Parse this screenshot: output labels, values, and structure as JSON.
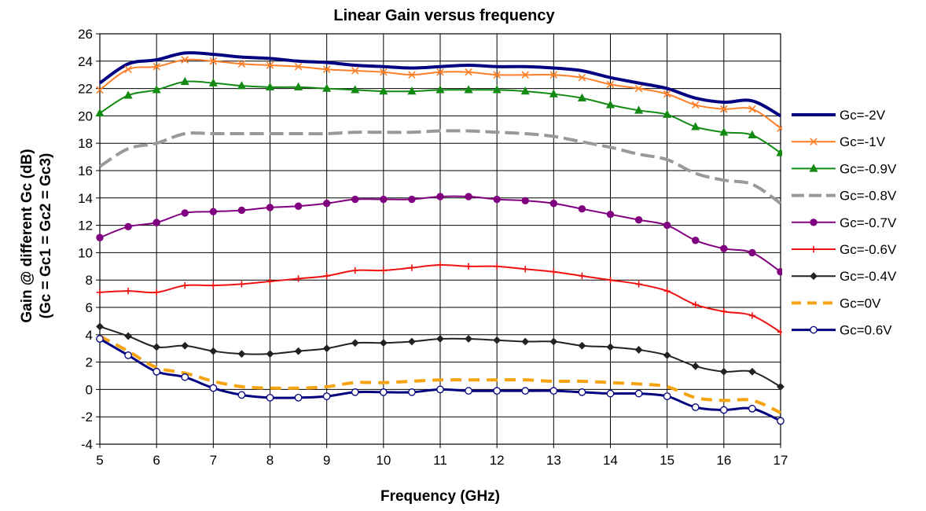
{
  "chart_data": {
    "type": "line",
    "title": "Linear Gain versus frequency",
    "xlabel": "Frequency (GHz)",
    "ylabel_line1": "Gain @ different Gc (dB)",
    "ylabel_line2": "(Gc = Gc1 = Gc2 = Gc3)",
    "xlim": [
      5,
      17
    ],
    "ylim": [
      -4,
      26
    ],
    "x_ticks": [
      5,
      6,
      7,
      8,
      9,
      10,
      11,
      12,
      13,
      14,
      15,
      16,
      17
    ],
    "y_ticks": [
      -4,
      -2,
      0,
      2,
      4,
      6,
      8,
      10,
      12,
      14,
      16,
      18,
      20,
      22,
      24,
      26
    ],
    "grid": true,
    "legend_position": "right",
    "x": [
      5,
      5.5,
      6,
      6.5,
      7,
      7.5,
      8,
      8.5,
      9,
      9.5,
      10,
      10.5,
      11,
      11.5,
      12,
      12.5,
      13,
      13.5,
      14,
      14.5,
      15,
      15.5,
      16,
      16.5,
      17
    ],
    "series": [
      {
        "name": "Gc=-2V",
        "color": "#000080",
        "marker": "none",
        "dash": "solid",
        "width": 4,
        "values": [
          22.4,
          23.8,
          24.1,
          24.6,
          24.5,
          24.3,
          24.2,
          24.0,
          23.9,
          23.7,
          23.6,
          23.5,
          23.6,
          23.7,
          23.6,
          23.6,
          23.5,
          23.3,
          22.8,
          22.4,
          22.0,
          21.3,
          21.0,
          21.1,
          20.0
        ]
      },
      {
        "name": "Gc=-1V",
        "color": "#ff7f27",
        "marker": "x",
        "dash": "solid",
        "width": 2,
        "values": [
          21.9,
          23.4,
          23.6,
          24.1,
          24.0,
          23.8,
          23.7,
          23.6,
          23.4,
          23.3,
          23.2,
          23.0,
          23.2,
          23.2,
          23.0,
          23.0,
          23.0,
          22.8,
          22.3,
          22.0,
          21.6,
          20.8,
          20.5,
          20.5,
          19.1
        ]
      },
      {
        "name": "Gc=-0.9V",
        "color": "#138a13",
        "marker": "triangle",
        "dash": "solid",
        "width": 2,
        "values": [
          20.2,
          21.5,
          21.9,
          22.5,
          22.4,
          22.2,
          22.1,
          22.1,
          22.0,
          21.9,
          21.8,
          21.8,
          21.9,
          21.9,
          21.9,
          21.8,
          21.6,
          21.3,
          20.8,
          20.4,
          20.1,
          19.2,
          18.8,
          18.6,
          17.3
        ]
      },
      {
        "name": "Gc=-0.8V",
        "color": "#999999",
        "marker": "none",
        "dash": "long",
        "width": 4,
        "values": [
          16.3,
          17.6,
          18.0,
          18.7,
          18.7,
          18.7,
          18.7,
          18.7,
          18.7,
          18.8,
          18.8,
          18.8,
          18.9,
          18.9,
          18.8,
          18.7,
          18.5,
          18.1,
          17.7,
          17.2,
          16.8,
          15.8,
          15.3,
          15.0,
          13.6
        ]
      },
      {
        "name": "Gc=-0.7V",
        "color": "#800080",
        "marker": "circle",
        "dash": "solid",
        "width": 2,
        "values": [
          11.1,
          11.9,
          12.2,
          12.9,
          13.0,
          13.1,
          13.3,
          13.4,
          13.6,
          13.9,
          13.9,
          13.9,
          14.1,
          14.1,
          13.9,
          13.8,
          13.6,
          13.2,
          12.8,
          12.4,
          12.0,
          10.9,
          10.3,
          10.0,
          8.6
        ]
      },
      {
        "name": "Gc=-0.6V",
        "color": "#ee1111",
        "marker": "plus",
        "dash": "solid",
        "width": 2,
        "values": [
          7.1,
          7.2,
          7.1,
          7.6,
          7.6,
          7.7,
          7.9,
          8.1,
          8.3,
          8.7,
          8.7,
          8.9,
          9.1,
          9.0,
          9.0,
          8.8,
          8.6,
          8.3,
          8.0,
          7.7,
          7.2,
          6.2,
          5.7,
          5.4,
          4.2
        ]
      },
      {
        "name": "Gc=-0.4V",
        "color": "#222222",
        "marker": "diamond",
        "dash": "solid",
        "width": 2,
        "values": [
          4.6,
          3.9,
          3.1,
          3.2,
          2.8,
          2.6,
          2.6,
          2.8,
          3.0,
          3.4,
          3.4,
          3.5,
          3.7,
          3.7,
          3.6,
          3.5,
          3.5,
          3.2,
          3.1,
          2.9,
          2.5,
          1.7,
          1.3,
          1.3,
          0.2
        ]
      },
      {
        "name": "Gc=0V",
        "color": "#f5a310",
        "marker": "none",
        "dash": "dash",
        "width": 4,
        "values": [
          3.9,
          2.8,
          1.6,
          1.2,
          0.6,
          0.2,
          0.1,
          0.1,
          0.2,
          0.5,
          0.5,
          0.6,
          0.7,
          0.7,
          0.7,
          0.7,
          0.6,
          0.6,
          0.5,
          0.4,
          0.2,
          -0.6,
          -0.8,
          -0.8,
          -1.7
        ]
      },
      {
        "name": "Gc=0.6V",
        "color": "#000080",
        "marker": "open-circle",
        "dash": "solid",
        "width": 3,
        "values": [
          3.7,
          2.5,
          1.3,
          0.9,
          0.1,
          -0.4,
          -0.6,
          -0.6,
          -0.5,
          -0.2,
          -0.2,
          -0.2,
          0.0,
          -0.1,
          -0.1,
          -0.1,
          -0.1,
          -0.2,
          -0.3,
          -0.3,
          -0.5,
          -1.3,
          -1.5,
          -1.4,
          -2.3
        ]
      }
    ]
  }
}
